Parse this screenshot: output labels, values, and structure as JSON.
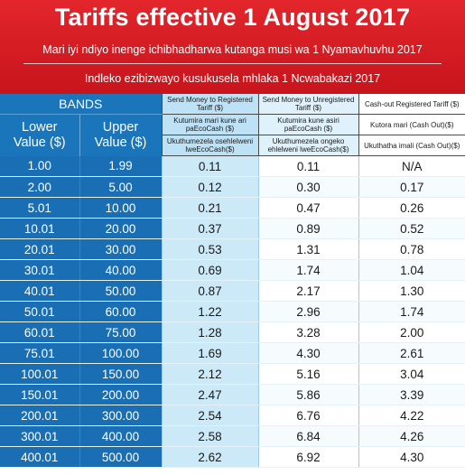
{
  "header": {
    "title": "Tariffs effective 1 August 2017",
    "subtitle_shona": "Mari iyi ndiyo inenge ichibhadharwa kutanga musi wa 1 Nyamavhuvhu 2017",
    "subtitle_ndebele": "Indleko ezibizwayo kusukusela mhlaka 1 Ncwabakazi  2017"
  },
  "table": {
    "bands_label": "BANDS",
    "lower_label": "Lower Value ($)",
    "upper_label": "Upper Value ($)",
    "columns": {
      "registered": {
        "title": "Send Money to Registered Tariff ($)",
        "shona": "Kutumira mari kune ari paEcoCash ($)",
        "ndebele": "Ukuthumezela osehlelweni lweEcoCash($)"
      },
      "unregistered": {
        "title": "Send Money to Unregistered Tariff ($)",
        "shona": "Kutumira kune asiri paEcoCash ($)",
        "ndebele": "Ukuthumezela ongeko ehlelweni lweEcoCash($)"
      },
      "cashout": {
        "title": "Cash-out Registered Tariff ($)",
        "shona": "Kutora mari (Cash Out)($)",
        "ndebele": "Ukuthatha imali (Cash Out)($)"
      }
    },
    "rows": [
      {
        "lower": "1.00",
        "upper": "1.99",
        "registered": "0.11",
        "unregistered": "0.11",
        "cashout": "N/A"
      },
      {
        "lower": "2.00",
        "upper": "5.00",
        "registered": "0.12",
        "unregistered": "0.30",
        "cashout": "0.17"
      },
      {
        "lower": "5.01",
        "upper": "10.00",
        "registered": "0.21",
        "unregistered": "0.47",
        "cashout": "0.26"
      },
      {
        "lower": "10.01",
        "upper": "20.00",
        "registered": "0.37",
        "unregistered": "0.89",
        "cashout": "0.52"
      },
      {
        "lower": "20.01",
        "upper": "30.00",
        "registered": "0.53",
        "unregistered": "1.31",
        "cashout": "0.78"
      },
      {
        "lower": "30.01",
        "upper": "40.00",
        "registered": "0.69",
        "unregistered": "1.74",
        "cashout": "1.04"
      },
      {
        "lower": "40.01",
        "upper": "50.00",
        "registered": "0.87",
        "unregistered": "2.17",
        "cashout": "1.30"
      },
      {
        "lower": "50.01",
        "upper": "60.00",
        "registered": "1.22",
        "unregistered": "2.96",
        "cashout": "1.74"
      },
      {
        "lower": "60.01",
        "upper": "75.00",
        "registered": "1.28",
        "unregistered": "3.28",
        "cashout": "2.00"
      },
      {
        "lower": "75.01",
        "upper": "100.00",
        "registered": "1.69",
        "unregistered": "4.30",
        "cashout": "2.61"
      },
      {
        "lower": "100.01",
        "upper": "150.00",
        "registered": "2.12",
        "unregistered": "5.16",
        "cashout": "3.04"
      },
      {
        "lower": "150.01",
        "upper": "200.00",
        "registered": "2.47",
        "unregistered": "5.86",
        "cashout": "3.39"
      },
      {
        "lower": "200.01",
        "upper": "300.00",
        "registered": "2.54",
        "unregistered": "6.76",
        "cashout": "4.22"
      },
      {
        "lower": "300.01",
        "upper": "400.00",
        "registered": "2.58",
        "unregistered": "6.84",
        "cashout": "4.26"
      },
      {
        "lower": "400.01",
        "upper": "500.00",
        "registered": "2.62",
        "unregistered": "6.92",
        "cashout": "4.30"
      }
    ]
  },
  "colors": {
    "banner_red": "#d11b22",
    "band_blue": "#1a75bb",
    "registered_col": "#cbe9f7"
  }
}
